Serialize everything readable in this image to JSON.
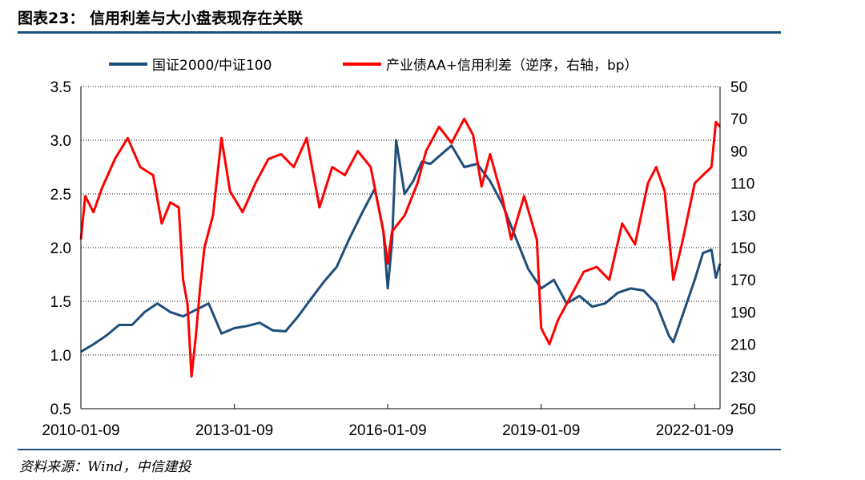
{
  "figure": {
    "title": "图表23： 信用利差与大小盘表现存在关联",
    "source": "资料来源：Wind，中信建投"
  },
  "colors": {
    "left_series": "#1f4e79",
    "right_series": "#ff0000",
    "grid": "#000000",
    "rule": "#1f4e79"
  },
  "chart_data": {
    "type": "line",
    "x_ticks": [
      "2010-01-09",
      "2013-01-09",
      "2016-01-09",
      "2019-01-09",
      "2022-01-09"
    ],
    "x_range": [
      "2010-01-09",
      "2022-07-09"
    ],
    "y_left": {
      "ticks": [
        "3.5",
        "3.0",
        "2.5",
        "2.0",
        "1.5",
        "1.0",
        "0.5"
      ],
      "range": [
        0.5,
        3.5
      ]
    },
    "y_right": {
      "ticks": [
        "50",
        "70",
        "90",
        "110",
        "130",
        "150",
        "170",
        "190",
        "210",
        "230",
        "250"
      ],
      "range": [
        50,
        250
      ],
      "inverted": true
    },
    "grid": "horizontal dotted",
    "legend_position": "top",
    "series": [
      {
        "name": "国证2000/中证100",
        "axis": "left",
        "color": "#1f4e79",
        "points": [
          [
            "2010-01-09",
            1.03
          ],
          [
            "2010-04-09",
            1.1
          ],
          [
            "2010-07-09",
            1.18
          ],
          [
            "2010-10-09",
            1.28
          ],
          [
            "2011-01-09",
            1.28
          ],
          [
            "2011-04-09",
            1.4
          ],
          [
            "2011-07-09",
            1.48
          ],
          [
            "2011-10-09",
            1.4
          ],
          [
            "2012-01-09",
            1.36
          ],
          [
            "2012-04-09",
            1.42
          ],
          [
            "2012-07-09",
            1.48
          ],
          [
            "2012-10-09",
            1.2
          ],
          [
            "2013-01-09",
            1.25
          ],
          [
            "2013-04-09",
            1.27
          ],
          [
            "2013-07-09",
            1.3
          ],
          [
            "2013-10-09",
            1.23
          ],
          [
            "2014-01-09",
            1.22
          ],
          [
            "2014-04-09",
            1.36
          ],
          [
            "2014-07-09",
            1.52
          ],
          [
            "2014-10-09",
            1.68
          ],
          [
            "2015-01-09",
            1.82
          ],
          [
            "2015-04-09",
            2.08
          ],
          [
            "2015-07-09",
            2.32
          ],
          [
            "2015-10-09",
            2.55
          ],
          [
            "2015-12-09",
            2.15
          ],
          [
            "2016-01-09",
            1.62
          ],
          [
            "2016-02-09",
            2.05
          ],
          [
            "2016-03-09",
            3.0
          ],
          [
            "2016-05-09",
            2.5
          ],
          [
            "2016-07-09",
            2.62
          ],
          [
            "2016-09-09",
            2.8
          ],
          [
            "2016-11-09",
            2.78
          ],
          [
            "2017-01-09",
            2.85
          ],
          [
            "2017-04-09",
            2.95
          ],
          [
            "2017-07-09",
            2.75
          ],
          [
            "2017-10-09",
            2.78
          ],
          [
            "2018-01-09",
            2.62
          ],
          [
            "2018-04-09",
            2.4
          ],
          [
            "2018-07-09",
            2.1
          ],
          [
            "2018-10-09",
            1.8
          ],
          [
            "2019-01-09",
            1.62
          ],
          [
            "2019-04-09",
            1.7
          ],
          [
            "2019-07-09",
            1.48
          ],
          [
            "2019-10-09",
            1.55
          ],
          [
            "2020-01-09",
            1.45
          ],
          [
            "2020-04-09",
            1.48
          ],
          [
            "2020-07-09",
            1.58
          ],
          [
            "2020-10-09",
            1.62
          ],
          [
            "2021-01-09",
            1.6
          ],
          [
            "2021-04-09",
            1.48
          ],
          [
            "2021-07-09",
            1.18
          ],
          [
            "2021-08-09",
            1.12
          ],
          [
            "2021-10-09",
            1.35
          ],
          [
            "2022-01-09",
            1.7
          ],
          [
            "2022-03-09",
            1.95
          ],
          [
            "2022-05-09",
            1.98
          ],
          [
            "2022-06-09",
            1.72
          ],
          [
            "2022-07-09",
            1.85
          ]
        ]
      },
      {
        "name": "产业债AA+信用利差（逆序，右轴，bp）",
        "axis": "right",
        "color": "#ff0000",
        "points": [
          [
            "2010-01-09",
            145
          ],
          [
            "2010-02-09",
            118
          ],
          [
            "2010-04-09",
            128
          ],
          [
            "2010-06-09",
            113
          ],
          [
            "2010-09-09",
            95
          ],
          [
            "2010-12-09",
            82
          ],
          [
            "2011-03-09",
            100
          ],
          [
            "2011-06-09",
            105
          ],
          [
            "2011-08-09",
            135
          ],
          [
            "2011-10-09",
            122
          ],
          [
            "2011-12-09",
            125
          ],
          [
            "2012-01-09",
            170
          ],
          [
            "2012-02-09",
            185
          ],
          [
            "2012-03-09",
            230
          ],
          [
            "2012-04-09",
            205
          ],
          [
            "2012-05-09",
            175
          ],
          [
            "2012-06-09",
            150
          ],
          [
            "2012-08-09",
            130
          ],
          [
            "2012-10-09",
            82
          ],
          [
            "2012-12-09",
            115
          ],
          [
            "2013-03-09",
            128
          ],
          [
            "2013-06-09",
            110
          ],
          [
            "2013-09-09",
            95
          ],
          [
            "2013-12-09",
            92
          ],
          [
            "2014-03-09",
            100
          ],
          [
            "2014-06-09",
            82
          ],
          [
            "2014-09-09",
            125
          ],
          [
            "2014-12-09",
            100
          ],
          [
            "2015-03-09",
            105
          ],
          [
            "2015-06-09",
            90
          ],
          [
            "2015-09-09",
            100
          ],
          [
            "2015-12-09",
            140
          ],
          [
            "2016-01-09",
            160
          ],
          [
            "2016-02-09",
            140
          ],
          [
            "2016-05-09",
            130
          ],
          [
            "2016-08-09",
            110
          ],
          [
            "2016-10-09",
            90
          ],
          [
            "2017-01-09",
            75
          ],
          [
            "2017-04-09",
            85
          ],
          [
            "2017-07-09",
            70
          ],
          [
            "2017-09-09",
            80
          ],
          [
            "2017-11-09",
            112
          ],
          [
            "2018-01-09",
            92
          ],
          [
            "2018-04-09",
            120
          ],
          [
            "2018-06-09",
            145
          ],
          [
            "2018-09-09",
            118
          ],
          [
            "2018-12-09",
            145
          ],
          [
            "2019-01-09",
            200
          ],
          [
            "2019-03-09",
            210
          ],
          [
            "2019-05-09",
            195
          ],
          [
            "2019-08-09",
            180
          ],
          [
            "2019-11-09",
            165
          ],
          [
            "2020-02-09",
            162
          ],
          [
            "2020-05-09",
            170
          ],
          [
            "2020-08-09",
            135
          ],
          [
            "2020-11-09",
            148
          ],
          [
            "2021-02-09",
            110
          ],
          [
            "2021-04-09",
            100
          ],
          [
            "2021-06-09",
            115
          ],
          [
            "2021-08-09",
            170
          ],
          [
            "2021-10-09",
            148
          ],
          [
            "2022-01-09",
            110
          ],
          [
            "2022-03-09",
            105
          ],
          [
            "2022-05-09",
            100
          ],
          [
            "2022-06-09",
            72
          ],
          [
            "2022-07-09",
            75
          ]
        ]
      }
    ]
  }
}
